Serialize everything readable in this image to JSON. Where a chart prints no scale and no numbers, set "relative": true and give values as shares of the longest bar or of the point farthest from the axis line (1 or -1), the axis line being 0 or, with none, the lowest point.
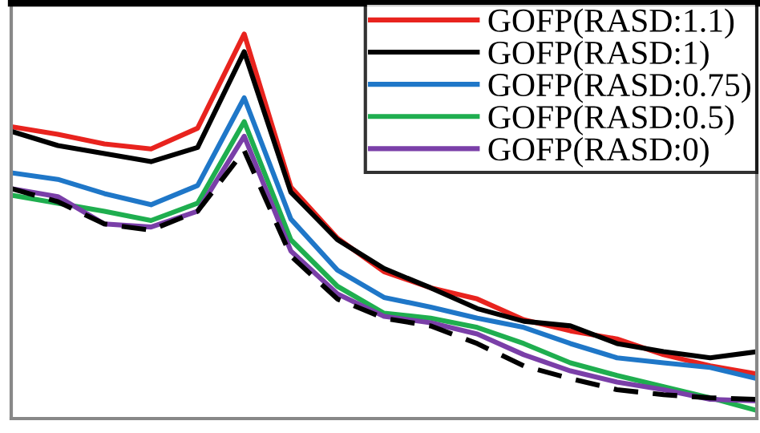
{
  "chart_data": {
    "type": "line",
    "relative": true,
    "legend": "top right",
    "grid": false,
    "categories": [
      null,
      null,
      null,
      null,
      null,
      null,
      null,
      null,
      null,
      null,
      null,
      null,
      null,
      null,
      null,
      null,
      null
    ],
    "series": [
      {
        "name": "GOFP(RASD:1.1)",
        "color": "#e8231e",
        "values": [
          0.759,
          0.739,
          0.714,
          0.701,
          0.755,
          1,
          0.602,
          0.469,
          0.382,
          0.34,
          0.311,
          0.257,
          0.228,
          0.207,
          0.166,
          0.137,
          0.116
        ]
      },
      {
        "name": "GOFP(RASD:1)",
        "color": "#000000",
        "values": [
          0.747,
          0.71,
          0.689,
          0.668,
          0.705,
          0.954,
          0.589,
          0.465,
          0.39,
          0.34,
          0.286,
          0.253,
          0.241,
          0.195,
          0.174,
          0.158,
          0.174
        ]
      },
      {
        "name": "GOFP(RASD:0.75)",
        "color": "#1f77c8",
        "values": [
          0.639,
          0.622,
          0.585,
          0.556,
          0.606,
          0.834,
          0.519,
          0.386,
          0.315,
          0.29,
          0.261,
          0.237,
          0.195,
          0.158,
          0.145,
          0.133,
          0.104
        ]
      },
      {
        "name": "GOFP(RASD:0.5)",
        "color": "#1fae4f",
        "values": [
          0.581,
          0.56,
          0.539,
          0.515,
          0.56,
          0.772,
          0.465,
          0.344,
          0.274,
          0.261,
          0.237,
          0.195,
          0.145,
          0.112,
          0.083,
          0.054,
          0.021
        ]
      },
      {
        "name": "GOFP(RASD:0)",
        "color": "#7a3fa8",
        "values": [
          0.598,
          0.577,
          0.506,
          0.498,
          0.539,
          0.734,
          0.436,
          0.324,
          0.266,
          0.249,
          0.22,
          0.166,
          0.124,
          0.095,
          0.075,
          0.05,
          0.046
        ]
      },
      {
        "color": "#000000",
        "line_style": "dashed",
        "values": [
          0.598,
          0.564,
          0.506,
          0.49,
          0.539,
          0.697,
          0.423,
          0.311,
          0.261,
          0.241,
          0.195,
          0.137,
          0.104,
          0.075,
          0.062,
          0.054,
          0.05
        ]
      }
    ]
  }
}
